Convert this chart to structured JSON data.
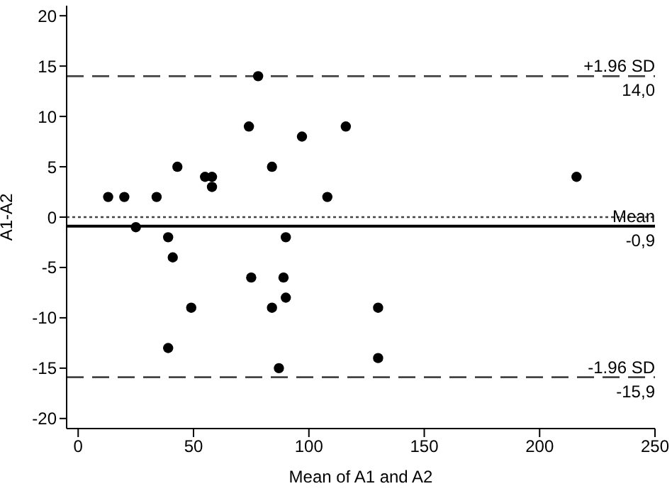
{
  "chart_data": {
    "type": "scatter",
    "xlabel": "Mean of A1 and A2",
    "ylabel": "A1-A2",
    "xlim": [
      -5,
      250
    ],
    "ylim": [
      -21,
      21
    ],
    "xticks": [
      0,
      50,
      100,
      150,
      200,
      250
    ],
    "yticks": [
      -20,
      -15,
      -10,
      -5,
      0,
      5,
      10,
      15,
      20
    ],
    "grid": false,
    "legend": false,
    "marker": "circle",
    "series": [
      {
        "color": "#000000",
        "x": [
          13,
          20,
          25,
          34,
          39,
          41,
          39,
          43,
          49,
          55,
          58,
          58,
          74,
          75,
          78,
          84,
          84,
          87,
          89,
          90,
          90,
          97,
          108,
          116,
          130,
          130,
          216
        ],
        "values": [
          2,
          2,
          -1,
          2,
          -2,
          -4,
          -13,
          5,
          -9,
          4,
          4,
          3,
          9,
          -6,
          14,
          5,
          -9,
          -15,
          -6,
          -8,
          -2,
          8,
          2,
          9,
          -9,
          -14,
          4
        ]
      }
    ],
    "ref_lines": [
      {
        "axis": "y",
        "value": 14.0,
        "label": "+1.96 SD",
        "color": "#444444",
        "line_style": "dashed"
      },
      {
        "axis": "y",
        "value": 0,
        "color": "#444444",
        "line_style": "dotted"
      },
      {
        "axis": "y",
        "value": -0.9,
        "label": "Mean",
        "color": "#000000",
        "line_style": "solid"
      },
      {
        "axis": "y",
        "value": -15.9,
        "label": "-1.96 SD",
        "color": "#444444",
        "line_style": "dashed"
      }
    ],
    "annotations": [
      {
        "text": "14,0",
        "y": 14.0
      },
      {
        "text": "-0,9",
        "y": -0.9
      },
      {
        "text": "-15,9",
        "y": -15.9
      }
    ]
  }
}
